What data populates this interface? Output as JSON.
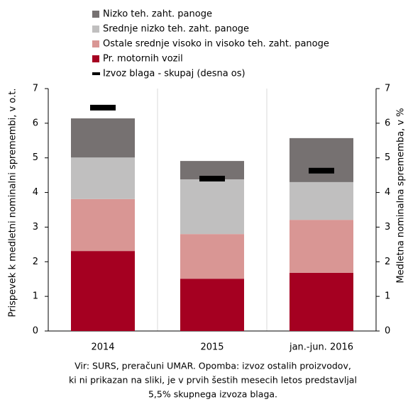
{
  "chart_data": {
    "type": "bar",
    "stacked": true,
    "categories": [
      "2014",
      "2015",
      "jan.-jun. 2016"
    ],
    "series": [
      {
        "name": "Pr. motornih vozil",
        "color": "#a50021",
        "values": [
          2.31,
          1.51,
          1.68
        ]
      },
      {
        "name": "Ostale srednje visoko in visoko teh. zaht. panoge",
        "color": "#d99694",
        "values": [
          1.5,
          1.29,
          1.53
        ]
      },
      {
        "name": "Srednje nizko teh. zaht. panoge",
        "color": "#c0bfbf",
        "values": [
          1.2,
          1.58,
          1.09
        ]
      },
      {
        "name": "Nizko teh. zaht. panoge",
        "color": "#767171",
        "values": [
          1.13,
          0.53,
          1.27
        ]
      },
      {
        "name": "Izvoz blaga - skupaj (desna os)",
        "color": "#000000",
        "axis": "y2",
        "values": [
          6.45,
          4.4,
          4.63
        ]
      }
    ],
    "ylabel": "Prispevek k medletni nominalni spremembi, v o.t.",
    "y2label": "Medletna nominalna sprememba, v %",
    "ylim": [
      0,
      7
    ],
    "yticks": [
      0,
      1,
      2,
      3,
      4,
      5,
      6,
      7
    ],
    "y2lim": [
      0,
      7
    ],
    "y2ticks": [
      0,
      1,
      2,
      3,
      4,
      5,
      6,
      7
    ],
    "note": [
      "Vir: SURS, preračuni UMAR. Opomba: izvoz ostalih proizvodov,",
      "ki ni prikazan na sliki, je v prvih šestih mesecih letos predstavljal",
      "5,5% skupnega izvoza blaga."
    ]
  }
}
